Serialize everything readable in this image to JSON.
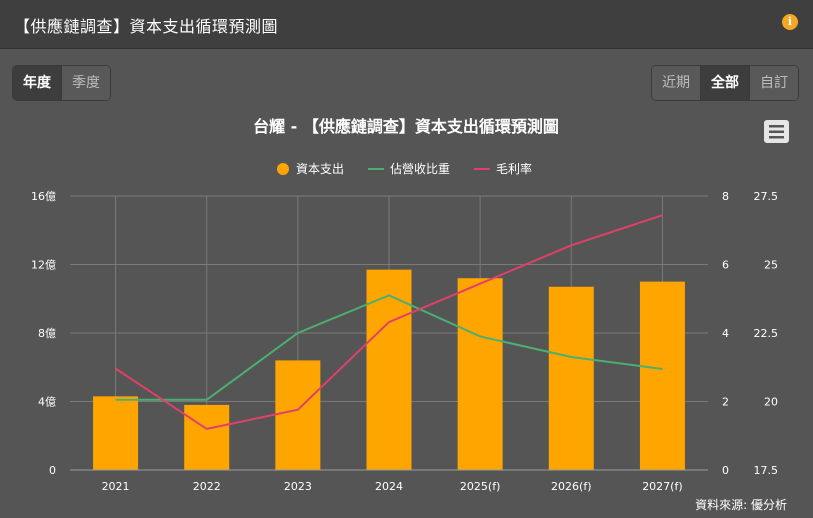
{
  "header": {
    "title": "【供應鏈調查】資本支出循環預測圖",
    "info_icon": "info-icon"
  },
  "period_toggle": {
    "items": [
      {
        "label": "年度",
        "active": true
      },
      {
        "label": "季度",
        "active": false
      }
    ]
  },
  "range_toggle": {
    "items": [
      {
        "label": "近期",
        "active": false
      },
      {
        "label": "全部",
        "active": true
      },
      {
        "label": "自訂",
        "active": false
      }
    ]
  },
  "menu_icon": "hamburger-menu-icon",
  "source": "資料來源: 優分析",
  "colors": {
    "bar": "#ffa500",
    "revenue_ratio": "#4caf72",
    "gross_margin": "#e0406a",
    "background": "#555555",
    "header": "#3f3f3f"
  },
  "chart_data": {
    "type": "bar",
    "title": "台耀 - 【供應鏈調查】資本支出循環預測圖",
    "categories": [
      "2021",
      "2022",
      "2023",
      "2024",
      "2025(f)",
      "2026(f)",
      "2027(f)"
    ],
    "legend": [
      "資本支出",
      "佔營收比重",
      "毛利率"
    ],
    "legend_position": "top-center",
    "grid": true,
    "series": [
      {
        "name": "資本支出",
        "type": "bar",
        "axis": "left",
        "values": [
          4.3,
          3.8,
          6.4,
          11.7,
          11.2,
          10.7,
          11.0
        ]
      },
      {
        "name": "佔營收比重",
        "type": "line",
        "axis": "right1",
        "values": [
          2.05,
          2.05,
          4.0,
          5.1,
          3.9,
          3.3,
          2.95
        ]
      },
      {
        "name": "毛利率",
        "type": "line",
        "axis": "right2",
        "values": [
          21.2,
          19.0,
          19.7,
          22.9,
          24.3,
          25.7,
          26.8
        ]
      }
    ],
    "y_left": {
      "ylim": [
        0,
        16
      ],
      "ticks": [
        "0",
        "4億",
        "8億",
        "12億",
        "16億"
      ],
      "tick_values": [
        0,
        4,
        8,
        12,
        16
      ]
    },
    "y_right1": {
      "ylim": [
        0,
        8
      ],
      "ticks": [
        "0",
        "2",
        "4",
        "6",
        "8"
      ],
      "tick_values": [
        0,
        2,
        4,
        6,
        8
      ]
    },
    "y_right2": {
      "ylim": [
        17.5,
        27.5
      ],
      "ticks": [
        "17.5",
        "20",
        "22.5",
        "25",
        "27.5"
      ],
      "tick_values": [
        17.5,
        20,
        22.5,
        25,
        27.5
      ]
    }
  }
}
